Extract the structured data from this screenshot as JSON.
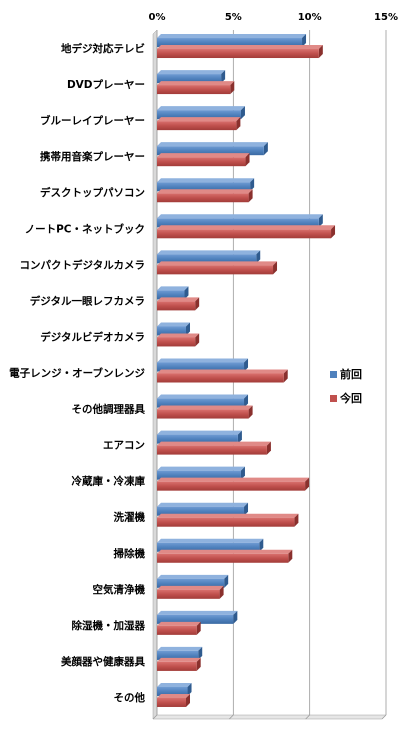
{
  "chart_data": {
    "type": "bar",
    "orientation": "horizontal",
    "categories": [
      "地デジ対応テレビ",
      "DVDプレーヤー",
      "ブルーレイプレーヤー",
      "携帯用音楽プレーヤー",
      "デスクトップパソコン",
      "ノートPC・ネットブック",
      "コンパクトデジタルカメラ",
      "デジタル一眼レフカメラ",
      "デジタルビデオカメラ",
      "電子レンジ・オーブンレンジ",
      "その他調理器具",
      "エアコン",
      "冷蔵庫・冷凍庫",
      "洗濯機",
      "掃除機",
      "空気清浄機",
      "除湿機・加湿器",
      "美顔器や健康器具",
      "その他"
    ],
    "series": [
      {
        "name": "前回",
        "color": "#4F81BD",
        "values": [
          9.5,
          4.2,
          5.5,
          7.0,
          6.1,
          10.6,
          6.5,
          1.8,
          1.9,
          5.7,
          5.7,
          5.3,
          5.5,
          5.7,
          6.7,
          4.4,
          5.0,
          2.7,
          2.0
        ]
      },
      {
        "name": "今回",
        "color": "#C0504D",
        "values": [
          10.6,
          4.8,
          5.2,
          5.8,
          6.0,
          11.4,
          7.6,
          2.5,
          2.5,
          8.3,
          6.0,
          7.2,
          9.7,
          9.0,
          8.6,
          4.1,
          2.6,
          2.6,
          1.9
        ]
      }
    ],
    "xlim": [
      0,
      15
    ],
    "xticks": [
      "0%",
      "5%",
      "10%",
      "15%"
    ],
    "xtick_values": [
      0,
      5,
      10,
      15
    ],
    "grid": true,
    "legend_position": "right"
  },
  "legend": {
    "items": [
      "前回",
      "今回"
    ]
  }
}
